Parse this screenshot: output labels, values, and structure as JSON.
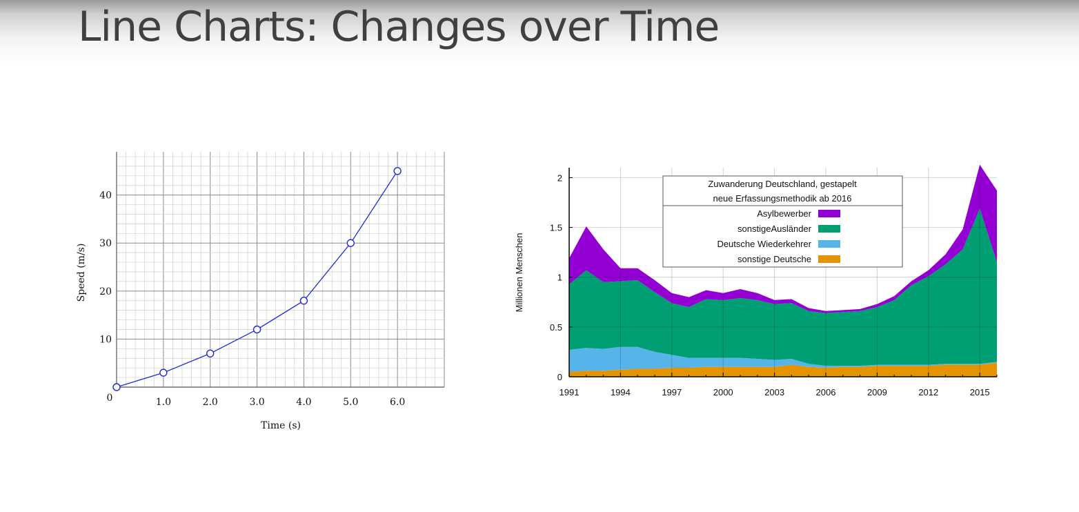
{
  "slide": {
    "title": "Line Charts: Changes over Time"
  },
  "chart_data": [
    {
      "type": "line",
      "title": "",
      "xlabel": "Time (s)",
      "ylabel": "Speed (m/s)",
      "x": [
        0,
        1,
        2,
        3,
        4,
        5,
        6
      ],
      "y": [
        0,
        3,
        7,
        12,
        18,
        30,
        45
      ],
      "xlim": [
        0,
        7
      ],
      "ylim": [
        0,
        49
      ],
      "xticks": [
        1,
        2,
        3,
        4,
        5,
        6
      ],
      "xtick_labels": [
        "1.0",
        "2.0",
        "3.0",
        "4.0",
        "5.0",
        "6.0"
      ],
      "yticks": [
        10,
        20,
        30,
        40
      ],
      "ytick_labels": [
        "10",
        "20",
        "30",
        "40"
      ],
      "origin_label": "0",
      "grid": true,
      "marker": "open-circle",
      "color": "#1f2bd6"
    },
    {
      "type": "area",
      "stacked": true,
      "title": "",
      "xlabel": "",
      "ylabel": "Millionen Menschen",
      "x": [
        1991,
        1992,
        1993,
        1994,
        1995,
        1996,
        1997,
        1998,
        1999,
        2000,
        2001,
        2002,
        2003,
        2004,
        2005,
        2006,
        2007,
        2008,
        2009,
        2010,
        2011,
        2012,
        2013,
        2014,
        2015,
        2016
      ],
      "xlim": [
        1991,
        2016
      ],
      "ylim": [
        0,
        2.1
      ],
      "xticks": [
        1991,
        1994,
        1997,
        2000,
        2003,
        2006,
        2009,
        2012,
        2015
      ],
      "xtick_labels": [
        "1991",
        "1994",
        "1997",
        "2000",
        "2003",
        "2006",
        "2009",
        "2012",
        "2015"
      ],
      "yticks": [
        0,
        0.5,
        1,
        1.5,
        2
      ],
      "ytick_labels": [
        "0",
        "0.5",
        "1",
        "1.5",
        "2"
      ],
      "grid": true,
      "legend": {
        "placement": "top-center",
        "title_lines": [
          "Zuwanderung Deutschland, gestapelt",
          "neue Erfassungsmethodik ab 2016"
        ]
      },
      "series": [
        {
          "name": "sonstige Deutsche",
          "color": "#e59400",
          "values": [
            0.05,
            0.06,
            0.06,
            0.07,
            0.08,
            0.08,
            0.09,
            0.09,
            0.1,
            0.1,
            0.1,
            0.1,
            0.1,
            0.12,
            0.1,
            0.09,
            0.1,
            0.1,
            0.11,
            0.11,
            0.11,
            0.11,
            0.12,
            0.12,
            0.12,
            0.14
          ]
        },
        {
          "name": "Deutsche Wiederkehrer",
          "color": "#56b4e9",
          "values": [
            0.22,
            0.23,
            0.22,
            0.23,
            0.22,
            0.17,
            0.13,
            0.1,
            0.09,
            0.09,
            0.09,
            0.08,
            0.07,
            0.06,
            0.03,
            0.02,
            0.01,
            0.01,
            0.01,
            0.01,
            0.01,
            0.01,
            0.01,
            0.01,
            0.01,
            0.01
          ]
        },
        {
          "name": "sonstigeAusländer",
          "color": "#009e73",
          "values": [
            0.66,
            0.78,
            0.67,
            0.66,
            0.67,
            0.6,
            0.52,
            0.51,
            0.59,
            0.58,
            0.6,
            0.59,
            0.56,
            0.56,
            0.53,
            0.53,
            0.54,
            0.55,
            0.58,
            0.65,
            0.8,
            0.89,
            1.0,
            1.15,
            1.56,
            1.0
          ]
        },
        {
          "name": "Asylbewerber",
          "color": "#9400d3",
          "values": [
            0.26,
            0.44,
            0.33,
            0.13,
            0.12,
            0.12,
            0.1,
            0.1,
            0.09,
            0.07,
            0.09,
            0.07,
            0.04,
            0.04,
            0.03,
            0.02,
            0.02,
            0.02,
            0.03,
            0.04,
            0.04,
            0.06,
            0.1,
            0.2,
            0.44,
            0.72
          ]
        }
      ]
    }
  ]
}
